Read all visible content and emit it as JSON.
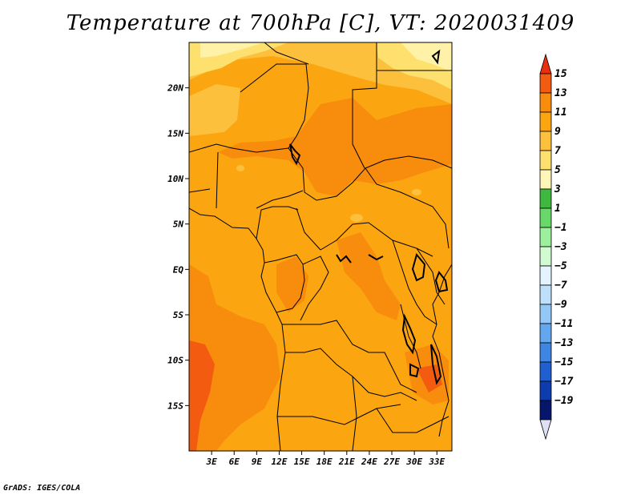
{
  "title": "Temperature at 700hPa [C], VT: 2020031409",
  "credit": "GrADS: IGES/COLA",
  "map": {
    "lon_range": [
      0,
      35
    ],
    "lat_range": [
      -20,
      25
    ],
    "lat_ticks": [
      {
        "value": 20,
        "label": "20N"
      },
      {
        "value": 15,
        "label": "15N"
      },
      {
        "value": 10,
        "label": "10N"
      },
      {
        "value": 5,
        "label": "5N"
      },
      {
        "value": 0,
        "label": "EQ"
      },
      {
        "value": -5,
        "label": "5S"
      },
      {
        "value": -10,
        "label": "10S"
      },
      {
        "value": -15,
        "label": "15S"
      }
    ],
    "lon_ticks": [
      {
        "value": 3,
        "label": "3E"
      },
      {
        "value": 6,
        "label": "6E"
      },
      {
        "value": 9,
        "label": "9E"
      },
      {
        "value": 12,
        "label": "12E"
      },
      {
        "value": 15,
        "label": "15E"
      },
      {
        "value": 18,
        "label": "18E"
      },
      {
        "value": 21,
        "label": "21E"
      },
      {
        "value": 24,
        "label": "24E"
      },
      {
        "value": 27,
        "label": "27E"
      },
      {
        "value": 30,
        "label": "30E"
      },
      {
        "value": 33,
        "label": "33E"
      }
    ]
  },
  "colorbar": {
    "levels": [
      15,
      13,
      11,
      9,
      7,
      5,
      3,
      1,
      -1,
      -3,
      -5,
      -7,
      -9,
      -11,
      -13,
      -15,
      -17,
      -19
    ],
    "labels": [
      "15",
      "13",
      "11",
      "9",
      "7",
      "5",
      "3",
      "1",
      "−1",
      "−3",
      "−5",
      "−7",
      "−9",
      "−11",
      "−13",
      "−15",
      "−17",
      "−19"
    ],
    "colors": [
      "#e8300e",
      "#f35b10",
      "#f88c0c",
      "#fba510",
      "#fcc03c",
      "#fde06e",
      "#fff7b8",
      "#3eb83e",
      "#68d868",
      "#9cef9c",
      "#d0fad0",
      "#e4f4ff",
      "#bfe0fb",
      "#93c7f6",
      "#63a8ef",
      "#3f86e3",
      "#1f5fd0",
      "#0d3caf",
      "#06166a",
      "#e0e0f4"
    ]
  }
}
